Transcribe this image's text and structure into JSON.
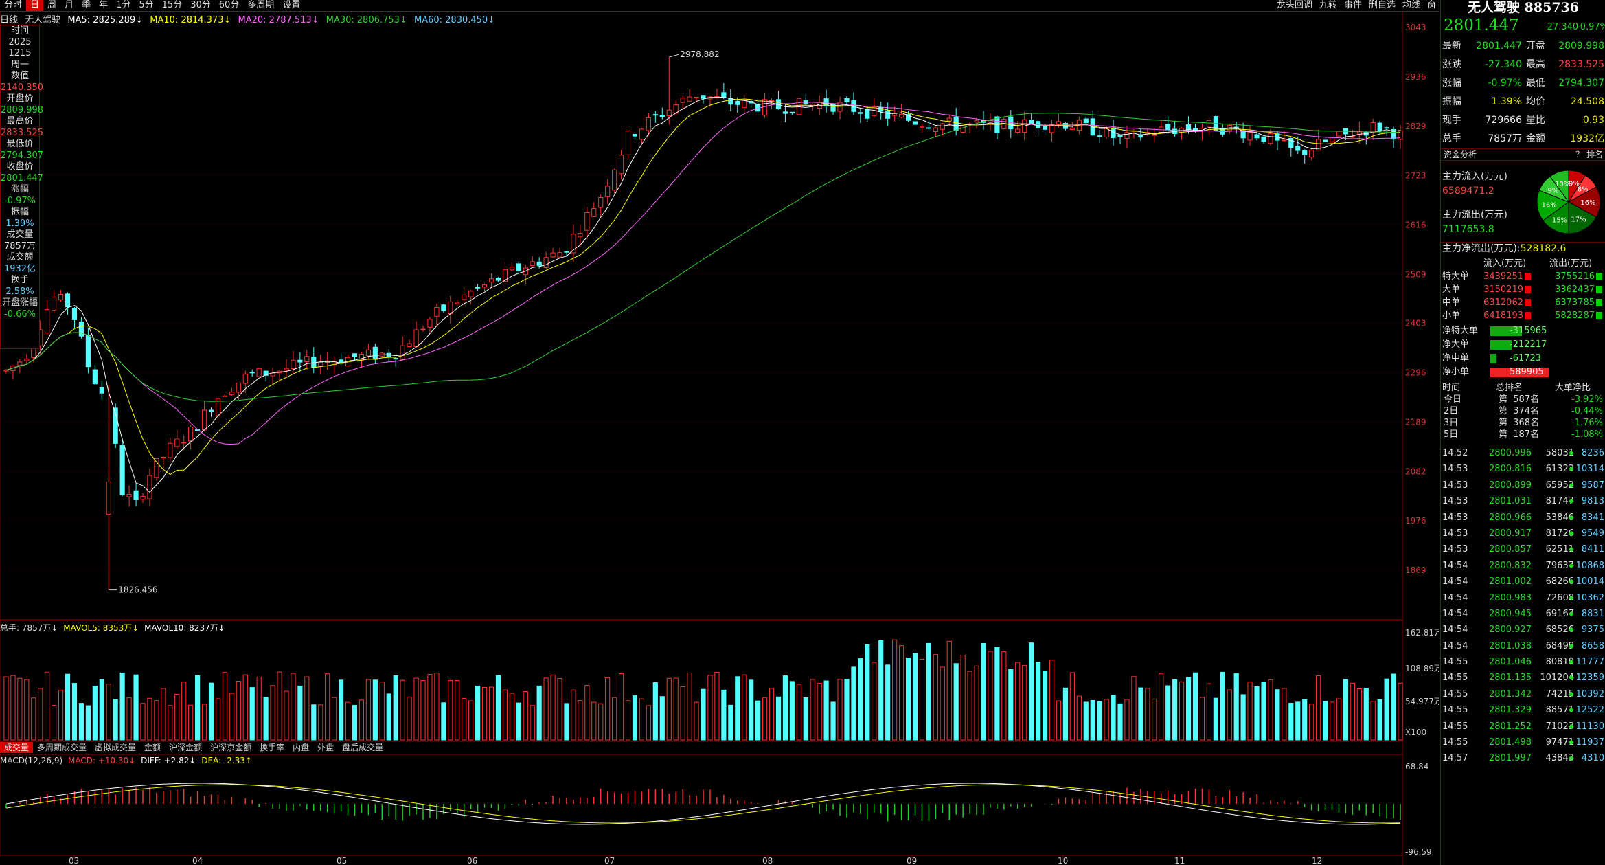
{
  "toolbar": {
    "periods": [
      "分时",
      "日",
      "周",
      "月",
      "季",
      "年",
      "1分",
      "5分",
      "15分",
      "30分",
      "60分",
      "多周期",
      "设置"
    ],
    "active_period": "日",
    "tools": [
      "龙头回调",
      "九转",
      "事件",
      "删自选",
      "均线",
      "窗"
    ]
  },
  "ma_line": {
    "label": "日线",
    "name": "无人驾驶",
    "ma5": "MA5: 2825.289↓",
    "ma10": "MA10: 2814.373↓",
    "ma20": "MA20: 2787.513↓",
    "ma30": "MA30: 2806.753↓",
    "ma60": "MA60: 2830.450↓",
    "colors": {
      "ma5": "#ffffff",
      "ma10": "#ffff00",
      "ma20": "#ff66ff",
      "ma30": "#33cc33",
      "ma60": "#66ccff"
    }
  },
  "sidebox": {
    "time_label": "时间",
    "year": "2025",
    "date": "1215",
    "weekday": "周一",
    "value_label": "数值",
    "value": "2140.350",
    "open_label": "开盘价",
    "open": "2809.998",
    "high_label": "最高价",
    "high": "2833.525",
    "low_label": "最低价",
    "low": "2794.307",
    "close_label": "收盘价",
    "close": "2801.447",
    "chg_label": "涨幅",
    "chg": "-0.97%",
    "amp_label": "振幅",
    "amp": "1.39%",
    "vol_label": "成交量",
    "vol": "7857万",
    "amt_label": "成交额",
    "amt": "1932亿",
    "turnover_label": "换手",
    "turnover": "2.58%",
    "open_chg_label": "开盘涨幅",
    "open_chg": "-0.66%"
  },
  "chart_data": {
    "type": "candlestick",
    "price_axis_ticks": [
      "3043",
      "2936",
      "2829",
      "2723",
      "2616",
      "2509",
      "2403",
      "2296",
      "2189",
      "2082",
      "1976",
      "1869"
    ],
    "price_range": [
      1826.456,
      2978.882
    ],
    "high_annotation": "2978.882",
    "low_annotation": "1826.456",
    "month_labels": [
      "03",
      "04",
      "05",
      "06",
      "07",
      "08",
      "09",
      "10",
      "11",
      "12"
    ],
    "volume_axis_ticks": [
      "162.81万",
      "108.89万",
      "54.977万",
      "X100"
    ],
    "macd_axis_ticks": [
      "68.84",
      "-96.59"
    ]
  },
  "volume_legend": {
    "total": "总手: 7857万↓",
    "mavol5": "MAVOL5: 8353万↓",
    "mavol10": "MAVOL10: 8237万↓"
  },
  "bottom_tabs": [
    "成交量",
    "多周期成交量",
    "虚拟成交量",
    "金额",
    "沪深金额",
    "沪深京金额",
    "换手率",
    "内盘",
    "外盘",
    "盘后成交量"
  ],
  "macd_legend": {
    "name": "MACD(12,26,9)",
    "macd": "MACD: +10.30↓",
    "diff": "DIFF: +2.82↓",
    "dea": "DEA: -2.33↑"
  },
  "right_panel": {
    "title": "无人驾驶 885736",
    "price": "2801.447",
    "change": "-27.340",
    "change_pct": "-0.97%",
    "quote": [
      {
        "l1": "最新",
        "v1": "2801.447",
        "c1": "g",
        "l2": "开盘",
        "v2": "2809.998",
        "c2": "g"
      },
      {
        "l1": "涨跌",
        "v1": "-27.340",
        "c1": "g",
        "l2": "最高",
        "v2": "2833.525",
        "c2": "r"
      },
      {
        "l1": "涨幅",
        "v1": "-0.97%",
        "c1": "g",
        "l2": "最低",
        "v2": "2794.307",
        "c2": "g"
      },
      {
        "l1": "振幅",
        "v1": "1.39%",
        "c1": "y",
        "l2": "均价",
        "v2": "24.508",
        "c2": "y"
      },
      {
        "l1": "现手",
        "v1": "729666",
        "c1": "w",
        "l2": "量比",
        "v2": "0.93",
        "c2": "y"
      },
      {
        "l1": "总手",
        "v1": "7857万",
        "c1": "w",
        "l2": "金额",
        "v2": "1932亿",
        "c2": "y"
      }
    ],
    "fund_head": "资金分析",
    "fund_head_right": "？ 排名",
    "inflow_label": "主力流入(万元)",
    "inflow": "6589471.2",
    "outflow_label": "主力流出(万元)",
    "outflow": "7117653.8",
    "net_label": "主力净流出(万元):",
    "net": "528182.6",
    "pie": {
      "slices": [
        {
          "label": "9%",
          "value": 9,
          "color": "#cc0000"
        },
        {
          "label": "8%",
          "value": 8,
          "color": "#ff3333"
        },
        {
          "label": "16%",
          "value": 16,
          "color": "#990000"
        },
        {
          "label": "17%",
          "value": 17,
          "color": "#006600"
        },
        {
          "label": "15%",
          "value": 15,
          "color": "#008800"
        },
        {
          "label": "16%",
          "value": 16,
          "color": "#00aa00"
        },
        {
          "label": "9%",
          "value": 9,
          "color": "#33cc33"
        },
        {
          "label": "10%",
          "value": 10,
          "color": "#22bb22"
        }
      ]
    },
    "flow_header": {
      "col1": "流入(万元)",
      "col2": "流出(万元)"
    },
    "flow_rows": [
      {
        "label": "特大单",
        "in": "3439251",
        "out": "3755216"
      },
      {
        "label": "大单",
        "in": "3150219",
        "out": "3362437"
      },
      {
        "label": "中单",
        "in": "6312062",
        "out": "6373785"
      },
      {
        "label": "小单",
        "in": "6418193",
        "out": "5828287"
      }
    ],
    "net_rows": [
      {
        "label": "净特大单",
        "value": "-315965",
        "dir": "g",
        "w": 0.54
      },
      {
        "label": "净大单",
        "value": "-212217",
        "dir": "g",
        "w": 0.36
      },
      {
        "label": "净中单",
        "value": "-61723",
        "dir": "g",
        "w": 0.1
      },
      {
        "label": "净小单",
        "value": "589905",
        "dir": "r",
        "w": 1.0
      }
    ],
    "rank_header": {
      "c1": "时间",
      "c2": "总排名",
      "c3": "大单净比"
    },
    "rank_rows": [
      {
        "t": "今日",
        "rank": "第  587名",
        "pct": "-3.92%"
      },
      {
        "t": "2日",
        "rank": "第  374名",
        "pct": "-0.44%"
      },
      {
        "t": "3日",
        "rank": "第  368名",
        "pct": "-1.76%"
      },
      {
        "t": "5日",
        "rank": "第  187名",
        "pct": "-1.08%"
      }
    ],
    "ticks": [
      {
        "t": "14:52",
        "p": "2800.996",
        "v": "58031",
        "n": "8236",
        "c": "g"
      },
      {
        "t": "14:53",
        "p": "2800.816",
        "v": "61323",
        "n": "10314",
        "c": "g"
      },
      {
        "t": "14:53",
        "p": "2800.899",
        "v": "65952",
        "n": "9587",
        "c": "g"
      },
      {
        "t": "14:53",
        "p": "2801.031",
        "v": "81747",
        "n": "9813",
        "c": "g"
      },
      {
        "t": "14:53",
        "p": "2800.966",
        "v": "53846",
        "n": "8341",
        "c": "g"
      },
      {
        "t": "14:53",
        "p": "2800.917",
        "v": "81726",
        "n": "9549",
        "c": "g"
      },
      {
        "t": "14:53",
        "p": "2800.857",
        "v": "62511",
        "n": "8411",
        "c": "g"
      },
      {
        "t": "14:54",
        "p": "2800.832",
        "v": "79637",
        "n": "10868",
        "c": "g"
      },
      {
        "t": "14:54",
        "p": "2801.002",
        "v": "68266",
        "n": "10014",
        "c": "g"
      },
      {
        "t": "14:54",
        "p": "2800.983",
        "v": "72608",
        "n": "10362",
        "c": "g"
      },
      {
        "t": "14:54",
        "p": "2800.945",
        "v": "69167",
        "n": "8831",
        "c": "g"
      },
      {
        "t": "14:54",
        "p": "2800.927",
        "v": "68526",
        "n": "9375",
        "c": "g"
      },
      {
        "t": "14:54",
        "p": "2801.038",
        "v": "68499",
        "n": "8658",
        "c": "g"
      },
      {
        "t": "14:55",
        "p": "2801.046",
        "v": "80810",
        "n": "11777",
        "c": "g"
      },
      {
        "t": "14:55",
        "p": "2801.135",
        "v": "101204",
        "n": "12359",
        "c": "g"
      },
      {
        "t": "14:55",
        "p": "2801.342",
        "v": "74215",
        "n": "10392",
        "c": "g"
      },
      {
        "t": "14:55",
        "p": "2801.329",
        "v": "88571",
        "n": "12522",
        "c": "g"
      },
      {
        "t": "14:55",
        "p": "2801.252",
        "v": "71023",
        "n": "11130",
        "c": "g"
      },
      {
        "t": "14:55",
        "p": "2801.498",
        "v": "97471",
        "n": "11937",
        "c": "g"
      },
      {
        "t": "14:57",
        "p": "2801.997",
        "v": "43843",
        "n": "4310",
        "c": "g"
      }
    ]
  }
}
